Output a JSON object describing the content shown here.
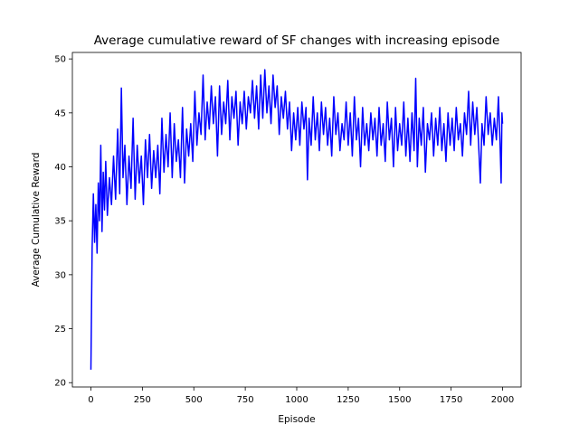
{
  "chart_data": {
    "type": "line",
    "title": "Average cumulative reward of SF changes with increasing episode",
    "xlabel": "Episode",
    "ylabel": "Average Cumulative Reward",
    "xlim": [
      -90,
      2090
    ],
    "ylim": [
      19.6,
      50.6
    ],
    "xticks": [
      0,
      250,
      500,
      750,
      1000,
      1250,
      1500,
      1750,
      2000
    ],
    "yticks": [
      20,
      25,
      30,
      35,
      40,
      45,
      50
    ],
    "grid": false,
    "legend": "none",
    "series": [
      {
        "color": "#0000ff",
        "points": [
          [
            0,
            21.2
          ],
          [
            6,
            32.5
          ],
          [
            12,
            37.5
          ],
          [
            18,
            33.0
          ],
          [
            24,
            36.5
          ],
          [
            30,
            32.0
          ],
          [
            36,
            38.5
          ],
          [
            42,
            35.0
          ],
          [
            48,
            42.0
          ],
          [
            54,
            34.0
          ],
          [
            60,
            39.5
          ],
          [
            66,
            36.0
          ],
          [
            72,
            40.5
          ],
          [
            80,
            35.5
          ],
          [
            90,
            39.0
          ],
          [
            100,
            36.5
          ],
          [
            110,
            41.0
          ],
          [
            120,
            37.0
          ],
          [
            130,
            43.5
          ],
          [
            140,
            37.5
          ],
          [
            148,
            47.3
          ],
          [
            156,
            39.0
          ],
          [
            165,
            42.0
          ],
          [
            175,
            36.5
          ],
          [
            185,
            41.0
          ],
          [
            195,
            38.0
          ],
          [
            205,
            44.5
          ],
          [
            215,
            37.0
          ],
          [
            225,
            42.0
          ],
          [
            235,
            38.5
          ],
          [
            245,
            41.0
          ],
          [
            255,
            36.5
          ],
          [
            265,
            42.5
          ],
          [
            275,
            39.0
          ],
          [
            285,
            43.0
          ],
          [
            295,
            38.0
          ],
          [
            305,
            41.5
          ],
          [
            315,
            39.0
          ],
          [
            325,
            42.0
          ],
          [
            335,
            37.5
          ],
          [
            345,
            44.5
          ],
          [
            355,
            39.5
          ],
          [
            365,
            43.0
          ],
          [
            375,
            40.0
          ],
          [
            385,
            45.0
          ],
          [
            395,
            39.0
          ],
          [
            405,
            44.0
          ],
          [
            415,
            40.5
          ],
          [
            425,
            42.5
          ],
          [
            435,
            39.0
          ],
          [
            445,
            45.5
          ],
          [
            455,
            38.5
          ],
          [
            465,
            43.5
          ],
          [
            475,
            41.0
          ],
          [
            485,
            44.0
          ],
          [
            495,
            40.5
          ],
          [
            505,
            47.0
          ],
          [
            515,
            42.0
          ],
          [
            525,
            45.0
          ],
          [
            535,
            43.0
          ],
          [
            545,
            48.5
          ],
          [
            555,
            42.5
          ],
          [
            565,
            46.0
          ],
          [
            575,
            43.5
          ],
          [
            585,
            47.5
          ],
          [
            595,
            44.0
          ],
          [
            605,
            46.5
          ],
          [
            615,
            41.0
          ],
          [
            625,
            47.5
          ],
          [
            635,
            43.0
          ],
          [
            645,
            46.0
          ],
          [
            655,
            44.0
          ],
          [
            665,
            48.0
          ],
          [
            675,
            42.5
          ],
          [
            685,
            46.5
          ],
          [
            695,
            44.5
          ],
          [
            705,
            47.0
          ],
          [
            715,
            42.0
          ],
          [
            725,
            46.0
          ],
          [
            735,
            44.0
          ],
          [
            745,
            47.0
          ],
          [
            755,
            43.5
          ],
          [
            765,
            46.5
          ],
          [
            775,
            45.0
          ],
          [
            785,
            48.0
          ],
          [
            795,
            44.5
          ],
          [
            805,
            47.5
          ],
          [
            815,
            43.5
          ],
          [
            825,
            48.5
          ],
          [
            835,
            44.5
          ],
          [
            845,
            49.0
          ],
          [
            855,
            45.0
          ],
          [
            865,
            47.5
          ],
          [
            875,
            44.0
          ],
          [
            885,
            48.5
          ],
          [
            895,
            45.5
          ],
          [
            905,
            47.5
          ],
          [
            915,
            43.0
          ],
          [
            925,
            46.5
          ],
          [
            935,
            44.5
          ],
          [
            945,
            47.0
          ],
          [
            955,
            43.5
          ],
          [
            965,
            46.0
          ],
          [
            975,
            41.5
          ],
          [
            985,
            45.0
          ],
          [
            995,
            42.5
          ],
          [
            1005,
            45.5
          ],
          [
            1015,
            42.0
          ],
          [
            1025,
            46.0
          ],
          [
            1035,
            43.5
          ],
          [
            1045,
            45.5
          ],
          [
            1052,
            38.8
          ],
          [
            1060,
            44.5
          ],
          [
            1070,
            42.0
          ],
          [
            1080,
            46.5
          ],
          [
            1090,
            42.5
          ],
          [
            1100,
            45.0
          ],
          [
            1110,
            41.5
          ],
          [
            1120,
            46.0
          ],
          [
            1130,
            43.0
          ],
          [
            1140,
            45.5
          ],
          [
            1150,
            42.0
          ],
          [
            1160,
            44.5
          ],
          [
            1170,
            41.0
          ],
          [
            1180,
            46.5
          ],
          [
            1190,
            43.0
          ],
          [
            1200,
            45.0
          ],
          [
            1210,
            41.5
          ],
          [
            1220,
            44.0
          ],
          [
            1230,
            42.5
          ],
          [
            1240,
            46.0
          ],
          [
            1250,
            42.0
          ],
          [
            1260,
            45.0
          ],
          [
            1270,
            41.0
          ],
          [
            1280,
            46.5
          ],
          [
            1290,
            42.5
          ],
          [
            1300,
            44.5
          ],
          [
            1310,
            40.0
          ],
          [
            1320,
            45.5
          ],
          [
            1330,
            42.0
          ],
          [
            1340,
            44.0
          ],
          [
            1350,
            41.5
          ],
          [
            1360,
            45.0
          ],
          [
            1370,
            42.5
          ],
          [
            1380,
            44.5
          ],
          [
            1390,
            41.0
          ],
          [
            1400,
            45.5
          ],
          [
            1410,
            42.0
          ],
          [
            1420,
            44.0
          ],
          [
            1430,
            40.5
          ],
          [
            1440,
            46.0
          ],
          [
            1450,
            42.5
          ],
          [
            1460,
            44.5
          ],
          [
            1470,
            40.0
          ],
          [
            1480,
            45.5
          ],
          [
            1490,
            41.5
          ],
          [
            1500,
            44.0
          ],
          [
            1510,
            42.0
          ],
          [
            1520,
            46.0
          ],
          [
            1530,
            41.0
          ],
          [
            1540,
            44.5
          ],
          [
            1550,
            40.5
          ],
          [
            1560,
            45.0
          ],
          [
            1570,
            41.5
          ],
          [
            1578,
            48.2
          ],
          [
            1586,
            40.0
          ],
          [
            1595,
            44.5
          ],
          [
            1605,
            42.0
          ],
          [
            1615,
            45.5
          ],
          [
            1625,
            39.5
          ],
          [
            1635,
            44.0
          ],
          [
            1645,
            42.5
          ],
          [
            1655,
            45.0
          ],
          [
            1665,
            41.0
          ],
          [
            1675,
            44.5
          ],
          [
            1685,
            42.0
          ],
          [
            1695,
            45.5
          ],
          [
            1705,
            41.5
          ],
          [
            1715,
            44.0
          ],
          [
            1725,
            40.5
          ],
          [
            1735,
            45.0
          ],
          [
            1745,
            42.0
          ],
          [
            1755,
            44.5
          ],
          [
            1765,
            41.5
          ],
          [
            1775,
            45.5
          ],
          [
            1785,
            42.5
          ],
          [
            1795,
            44.0
          ],
          [
            1805,
            41.0
          ],
          [
            1815,
            45.0
          ],
          [
            1825,
            43.0
          ],
          [
            1835,
            47.0
          ],
          [
            1845,
            42.0
          ],
          [
            1855,
            46.0
          ],
          [
            1865,
            43.0
          ],
          [
            1875,
            45.5
          ],
          [
            1885,
            41.5
          ],
          [
            1892,
            38.5
          ],
          [
            1900,
            44.0
          ],
          [
            1910,
            42.0
          ],
          [
            1920,
            46.5
          ],
          [
            1930,
            43.0
          ],
          [
            1940,
            45.0
          ],
          [
            1950,
            42.0
          ],
          [
            1960,
            44.5
          ],
          [
            1970,
            42.5
          ],
          [
            1980,
            46.5
          ],
          [
            1988,
            42.0
          ],
          [
            1993,
            38.5
          ],
          [
            1997,
            45.0
          ],
          [
            2000,
            44.0
          ]
        ]
      }
    ]
  }
}
